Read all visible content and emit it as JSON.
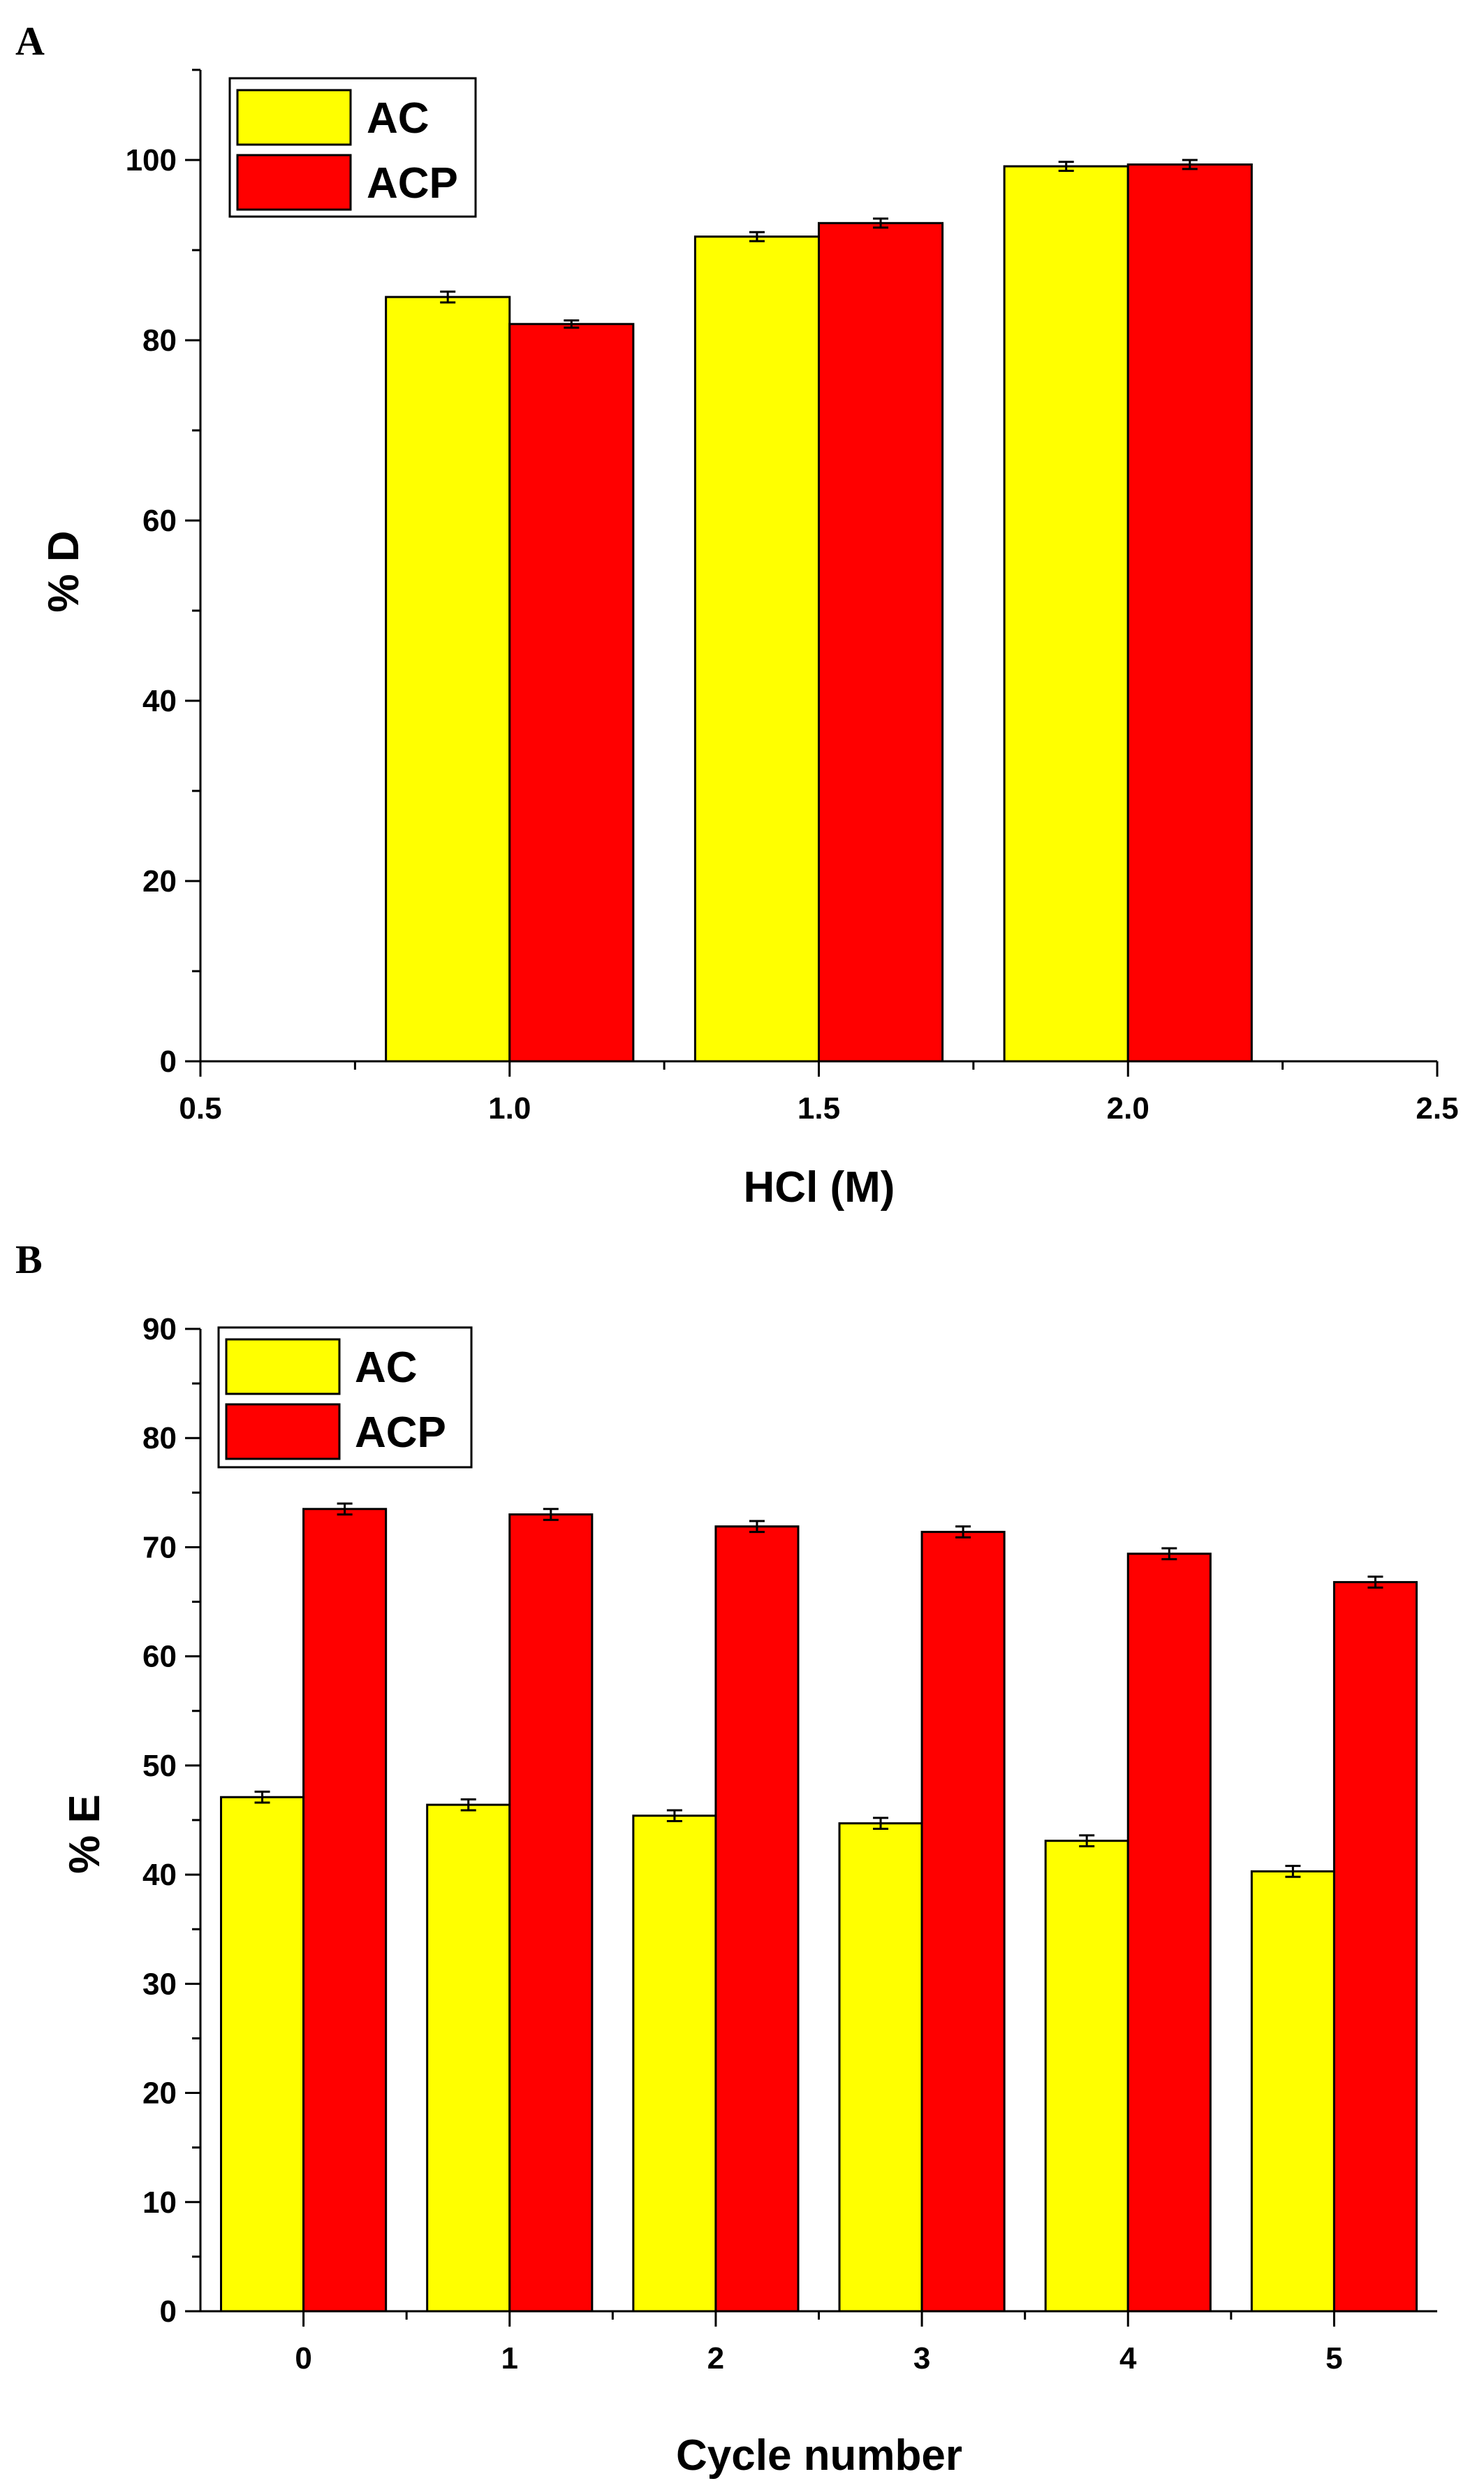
{
  "colors": {
    "AC": "#ffff00",
    "ACP": "#ff0000",
    "axis": "#000000"
  },
  "chart_data": [
    {
      "id": "A",
      "panel_label": "A",
      "type": "bar",
      "xlabel": "HCl (M)",
      "ylabel": "% D",
      "xlim": [
        0.5,
        2.5
      ],
      "ylim": [
        0,
        110
      ],
      "x_ticks": [
        0.5,
        1.0,
        1.5,
        2.0,
        2.5
      ],
      "x_tick_labels": [
        "0.5",
        "1.0",
        "1.5",
        "2.0",
        "2.5"
      ],
      "y_ticks": [
        0,
        20,
        40,
        60,
        80,
        100
      ],
      "y_tick_labels": [
        "0",
        "20",
        "40",
        "60",
        "80",
        "100"
      ],
      "categories": [
        1.0,
        1.5,
        2.0
      ],
      "bar_width": 0.2,
      "legend": [
        "AC",
        "ACP"
      ],
      "series": [
        {
          "name": "AC",
          "values": [
            84.8,
            91.5,
            99.3
          ],
          "errors": [
            0.6,
            0.5,
            0.5
          ]
        },
        {
          "name": "ACP",
          "values": [
            81.8,
            93.0,
            99.5
          ],
          "errors": [
            0.4,
            0.5,
            0.5
          ]
        }
      ]
    },
    {
      "id": "B",
      "panel_label": "B",
      "type": "bar",
      "xlabel": "Cycle number",
      "ylabel": "% E",
      "ylim": [
        0,
        90
      ],
      "y_ticks": [
        0,
        10,
        20,
        30,
        40,
        50,
        60,
        70,
        80,
        90
      ],
      "y_tick_labels": [
        "0",
        "10",
        "20",
        "30",
        "40",
        "50",
        "60",
        "70",
        "80",
        "90"
      ],
      "categories": [
        "0",
        "1",
        "2",
        "3",
        "4",
        "5"
      ],
      "legend": [
        "AC",
        "ACP"
      ],
      "series": [
        {
          "name": "AC",
          "values": [
            47.1,
            46.4,
            45.4,
            44.7,
            43.1,
            40.3
          ],
          "errors": [
            0.5,
            0.5,
            0.5,
            0.5,
            0.5,
            0.5
          ]
        },
        {
          "name": "ACP",
          "values": [
            73.5,
            73.0,
            71.9,
            71.4,
            69.4,
            66.8
          ],
          "errors": [
            0.5,
            0.5,
            0.5,
            0.5,
            0.5,
            0.5
          ]
        }
      ]
    }
  ]
}
